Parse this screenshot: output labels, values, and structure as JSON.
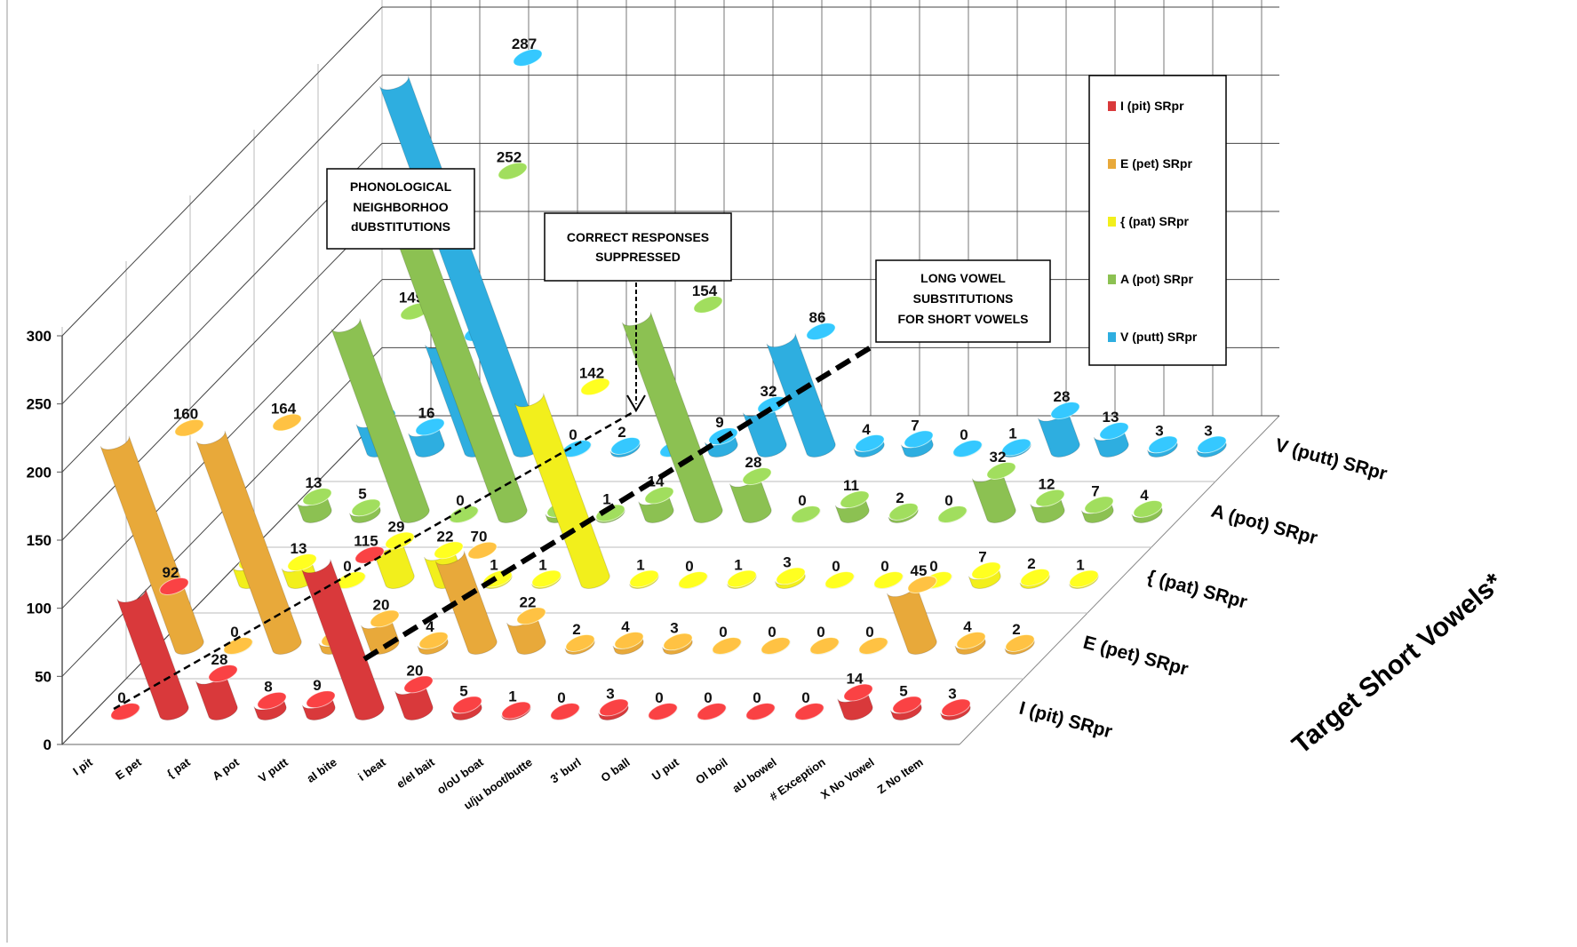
{
  "chart_data": {
    "type": "bar3d",
    "categories": [
      "I  pit",
      "E pet",
      "{  pat",
      "A  pot",
      "V  putt",
      "aI  bite",
      "i  beat",
      "e/eI  bait",
      "o/oU boat",
      "u/ju boot/butte",
      "3'  burl",
      "O ball",
      "U  put",
      "OI boil",
      "aU bowel",
      "# Exception",
      "X No Vowel",
      "Z No Item"
    ],
    "series": [
      {
        "name": "I (pit)  SRpr",
        "color": "#d9393b",
        "values": [
          0,
          92,
          28,
          8,
          9,
          115,
          20,
          5,
          1,
          0,
          3,
          0,
          0,
          0,
          0,
          14,
          5,
          3
        ]
      },
      {
        "name": "E (pet) SRpr",
        "color": "#e8a93a",
        "values": [
          160,
          0,
          164,
          6,
          20,
          4,
          70,
          22,
          2,
          4,
          3,
          0,
          0,
          0,
          0,
          45,
          4,
          2
        ]
      },
      {
        "name": "{ (pat) SRpr",
        "color": "#f2ef1c",
        "values": [
          14,
          13,
          0,
          29,
          22,
          1,
          1,
          142,
          1,
          0,
          1,
          3,
          0,
          0,
          0,
          7,
          2,
          1
        ]
      },
      {
        "name": "A (pot) SRpr",
        "color": "#8cc152",
        "values": [
          13,
          5,
          149,
          0,
          252,
          4,
          1,
          14,
          154,
          28,
          0,
          11,
          2,
          0,
          32,
          12,
          7,
          4
        ]
      },
      {
        "name": "V (putt) SRpr",
        "color": "#2eaee0",
        "values": [
          23,
          16,
          85,
          287,
          0,
          2,
          0,
          9,
          32,
          86,
          4,
          7,
          0,
          1,
          28,
          13,
          3,
          3
        ]
      }
    ],
    "ylim": [
      0,
      300
    ],
    "yticks": [
      0,
      50,
      100,
      150,
      200,
      250,
      300
    ],
    "grid": true,
    "depth_axis_title": "Target Short Vowels*",
    "annotations": [
      {
        "lines": [
          "PHONOLOGICAL",
          "NEIGHBORHOO",
          "dUBSTITUTIONS"
        ]
      },
      {
        "lines": [
          "CORRECT RESPONSES",
          "SUPPRESSED"
        ]
      },
      {
        "lines": [
          "LONG VOWEL",
          "SUBSTITUTIONS",
          "FOR SHORT VOWELS"
        ]
      }
    ]
  }
}
